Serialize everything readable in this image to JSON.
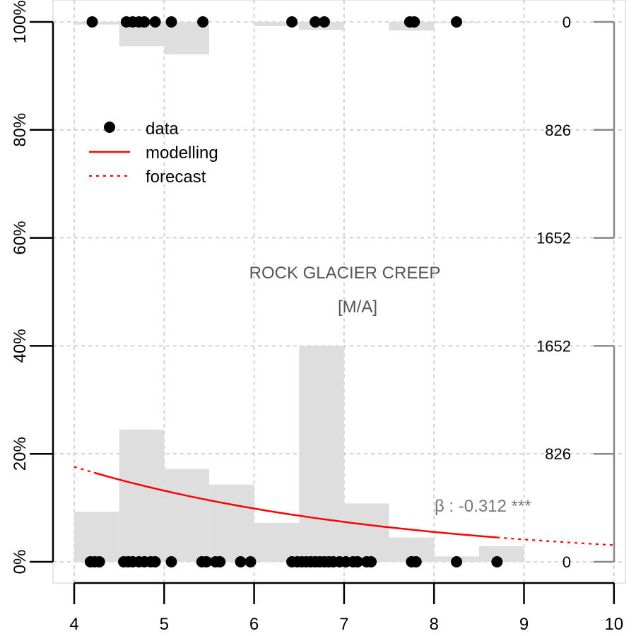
{
  "chart_data": {
    "type": "scatter",
    "title": "ROCK GLACIER CREEP",
    "subtitle": "[M/A]",
    "xlim": [
      4,
      10
    ],
    "x_ticks": [
      "4",
      "5",
      "6",
      "7",
      "8",
      "9",
      "10"
    ],
    "y_ticks": [
      "0%",
      "20%",
      "40%",
      "60%",
      "80%",
      "100%"
    ],
    "right_ticks_bottom": [
      "0",
      "826",
      "1652"
    ],
    "right_ticks_top": [
      "1652",
      "826",
      "0"
    ],
    "grid": true,
    "legend": {
      "position": "top-left",
      "entries": [
        "data",
        "modelling",
        "forecast"
      ]
    },
    "beta_label": "β : -0.312 ***",
    "colors": {
      "histogram": "#dedede",
      "points": "#000000",
      "model": "#ff0000",
      "beta_text": "#777777"
    },
    "histogram_bottom": {
      "bin_edges": [
        4,
        4.5,
        5,
        5.5,
        6,
        6.5,
        7,
        7.5,
        8,
        8.5,
        9
      ],
      "values": [
        9.3,
        24.5,
        17.2,
        14.3,
        7.2,
        40.0,
        10.8,
        4.5,
        1.0,
        2.9
      ]
    },
    "histogram_top": {
      "bin_edges": [
        4,
        4.5,
        5,
        5.5,
        6,
        6.5,
        7,
        7.5,
        8,
        8.5,
        9
      ],
      "values": [
        0.5,
        4.5,
        6.0,
        0,
        0.8,
        1.5,
        0,
        1.6,
        0.2,
        0
      ]
    },
    "points_y0": [
      4.18,
      4.23,
      4.28,
      4.55,
      4.6,
      4.65,
      4.72,
      4.78,
      4.85,
      4.9,
      5.08,
      5.42,
      5.47,
      5.57,
      5.62,
      5.85,
      5.96,
      6.42,
      6.48,
      6.53,
      6.58,
      6.63,
      6.68,
      6.73,
      6.78,
      6.83,
      6.88,
      6.95,
      7.02,
      7.1,
      7.15,
      7.25,
      7.3,
      7.75,
      7.8,
      8.25,
      8.7
    ],
    "points_y1": [
      4.2,
      4.58,
      4.65,
      4.72,
      4.78,
      4.9,
      5.08,
      5.43,
      6.42,
      6.68,
      6.78,
      7.73,
      7.78,
      8.25
    ],
    "model_curve": {
      "y_at_x4": 17.6,
      "y_at_x10": 3.1,
      "model_range": [
        4.22,
        8.7
      ],
      "range": [
        4,
        10
      ]
    }
  }
}
